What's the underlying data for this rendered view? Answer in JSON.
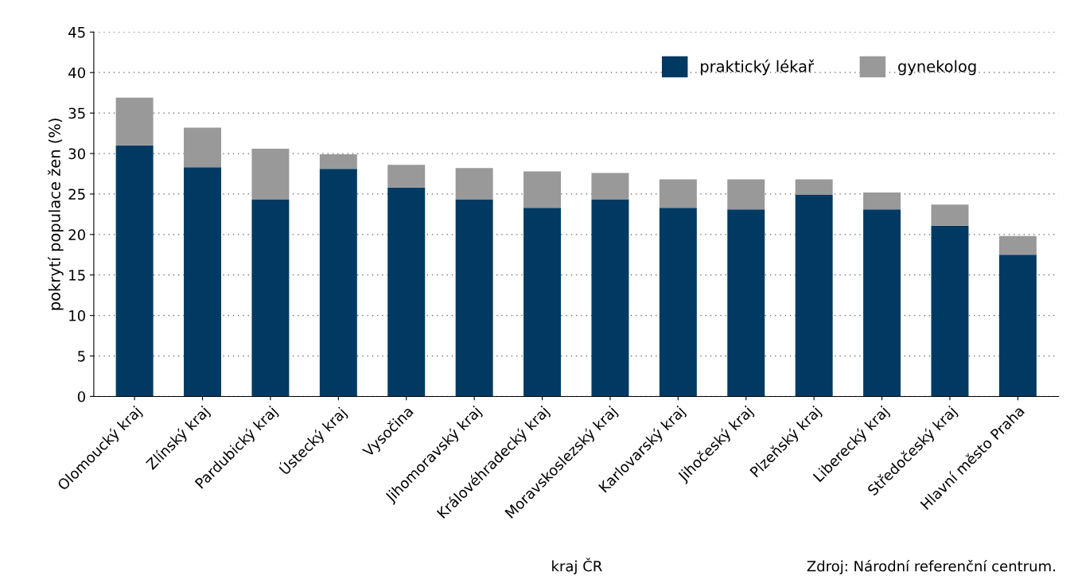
{
  "chart_data": {
    "type": "bar",
    "stacked": true,
    "xlabel": "kraj ČR",
    "ylabel": "pokrytí populace žen (%)",
    "categories": [
      "Olomoucký kraj",
      "Zlínský kraj",
      "Pardubický kraj",
      "Ústecký kraj",
      "Vysočina",
      "Jihomoravský kraj",
      "Královéhradecký kraj",
      "Moravskoslezský kraj",
      "Karlovarský kraj",
      "Jihočeský kraj",
      "Plzeňský kraj",
      "Liberecký kraj",
      "Středočeský kraj",
      "Hlavní město Praha"
    ],
    "series": [
      {
        "name": "praktický lékař",
        "color": "#003a63",
        "values": [
          31.0,
          28.3,
          24.3,
          28.1,
          25.8,
          24.3,
          23.3,
          24.3,
          23.3,
          23.1,
          24.9,
          23.1,
          21.1,
          17.5
        ]
      },
      {
        "name": "gynekolog",
        "color": "#999999",
        "values": [
          5.9,
          4.9,
          6.3,
          1.8,
          2.8,
          3.9,
          4.5,
          3.3,
          3.5,
          3.7,
          1.9,
          2.1,
          2.6,
          2.3
        ]
      }
    ],
    "ylim": [
      0,
      45
    ],
    "yticks": [
      0,
      5,
      10,
      15,
      20,
      25,
      30,
      35,
      40,
      45
    ],
    "grid": "y",
    "legend": "top right",
    "annotations": [
      "Zdroj: Národní referenční centrum."
    ]
  }
}
